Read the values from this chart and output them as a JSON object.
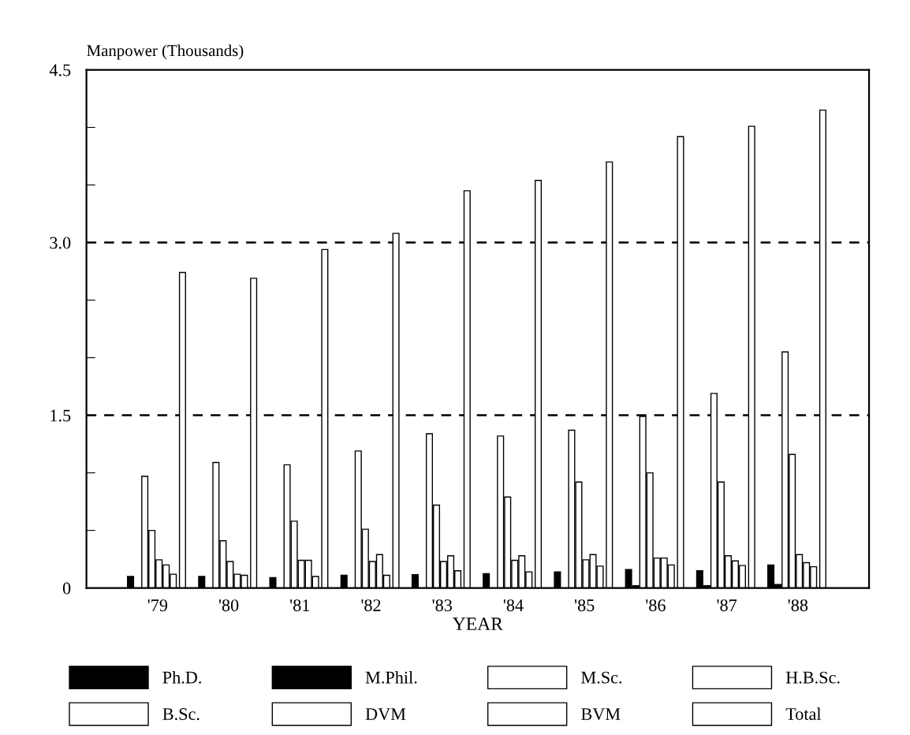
{
  "chart_data": {
    "type": "bar",
    "ylabel": "Manpower (Thousands)",
    "xlabel": "YEAR",
    "categories": [
      "'79",
      "'80",
      "'81",
      "'82",
      "'83",
      "'84",
      "'85",
      "'86",
      "'87",
      "'88"
    ],
    "series": [
      {
        "name": "Ph.D.",
        "color": "#000000",
        "values": [
          0.1,
          0.1,
          0.09,
          0.11,
          0.115,
          0.125,
          0.14,
          0.16,
          0.15,
          0.2
        ]
      },
      {
        "name": "M.Phil.",
        "color": "#000000",
        "values": [
          null,
          null,
          null,
          null,
          null,
          null,
          null,
          0.02,
          0.02,
          0.03
        ]
      },
      {
        "name": "M.Sc.",
        "color": "#ffffff",
        "values": [
          0.97,
          1.09,
          1.07,
          1.19,
          1.34,
          1.32,
          1.37,
          1.49,
          1.69,
          2.05
        ]
      },
      {
        "name": "H.B.Sc.",
        "color": "#ffffff",
        "values": [
          0.5,
          0.41,
          0.58,
          0.51,
          0.72,
          0.79,
          0.92,
          1.0,
          0.92,
          1.16
        ]
      },
      {
        "name": "B.Sc.",
        "color": "#ffffff",
        "values": [
          0.245,
          0.23,
          0.24,
          0.23,
          0.23,
          0.24,
          0.245,
          0.26,
          0.28,
          0.29
        ]
      },
      {
        "name": "DVM",
        "color": "#ffffff",
        "values": [
          0.2,
          0.12,
          0.24,
          0.29,
          0.28,
          0.28,
          0.29,
          0.26,
          0.235,
          0.22
        ]
      },
      {
        "name": "BVM",
        "color": "#ffffff",
        "values": [
          0.12,
          0.11,
          0.1,
          0.11,
          0.15,
          0.14,
          0.19,
          0.2,
          0.195,
          0.185
        ]
      },
      {
        "name": "Total",
        "color": "#ffffff",
        "values": [
          2.74,
          2.69,
          2.94,
          3.08,
          3.45,
          3.54,
          3.7,
          3.92,
          4.01,
          4.15
        ]
      }
    ],
    "ylim": [
      0,
      4.5
    ],
    "yticks": [
      0,
      {
        "value": 0.5,
        "label": null
      },
      {
        "value": 1.0,
        "label": null
      },
      1.5,
      {
        "value": 2.0,
        "label": null
      },
      {
        "value": 2.5,
        "label": null
      },
      {
        "value": 3.0,
        "label": "3.0"
      },
      {
        "value": 3.5,
        "label": null
      },
      {
        "value": 4.0,
        "label": null
      },
      4.5
    ],
    "ref_lines": [
      {
        "axis": "y",
        "value": 1.5,
        "line_style": "dashed"
      },
      {
        "axis": "y",
        "value": 3.0,
        "line_style": "dashed"
      }
    ],
    "grid": false,
    "legend": "bottom"
  }
}
